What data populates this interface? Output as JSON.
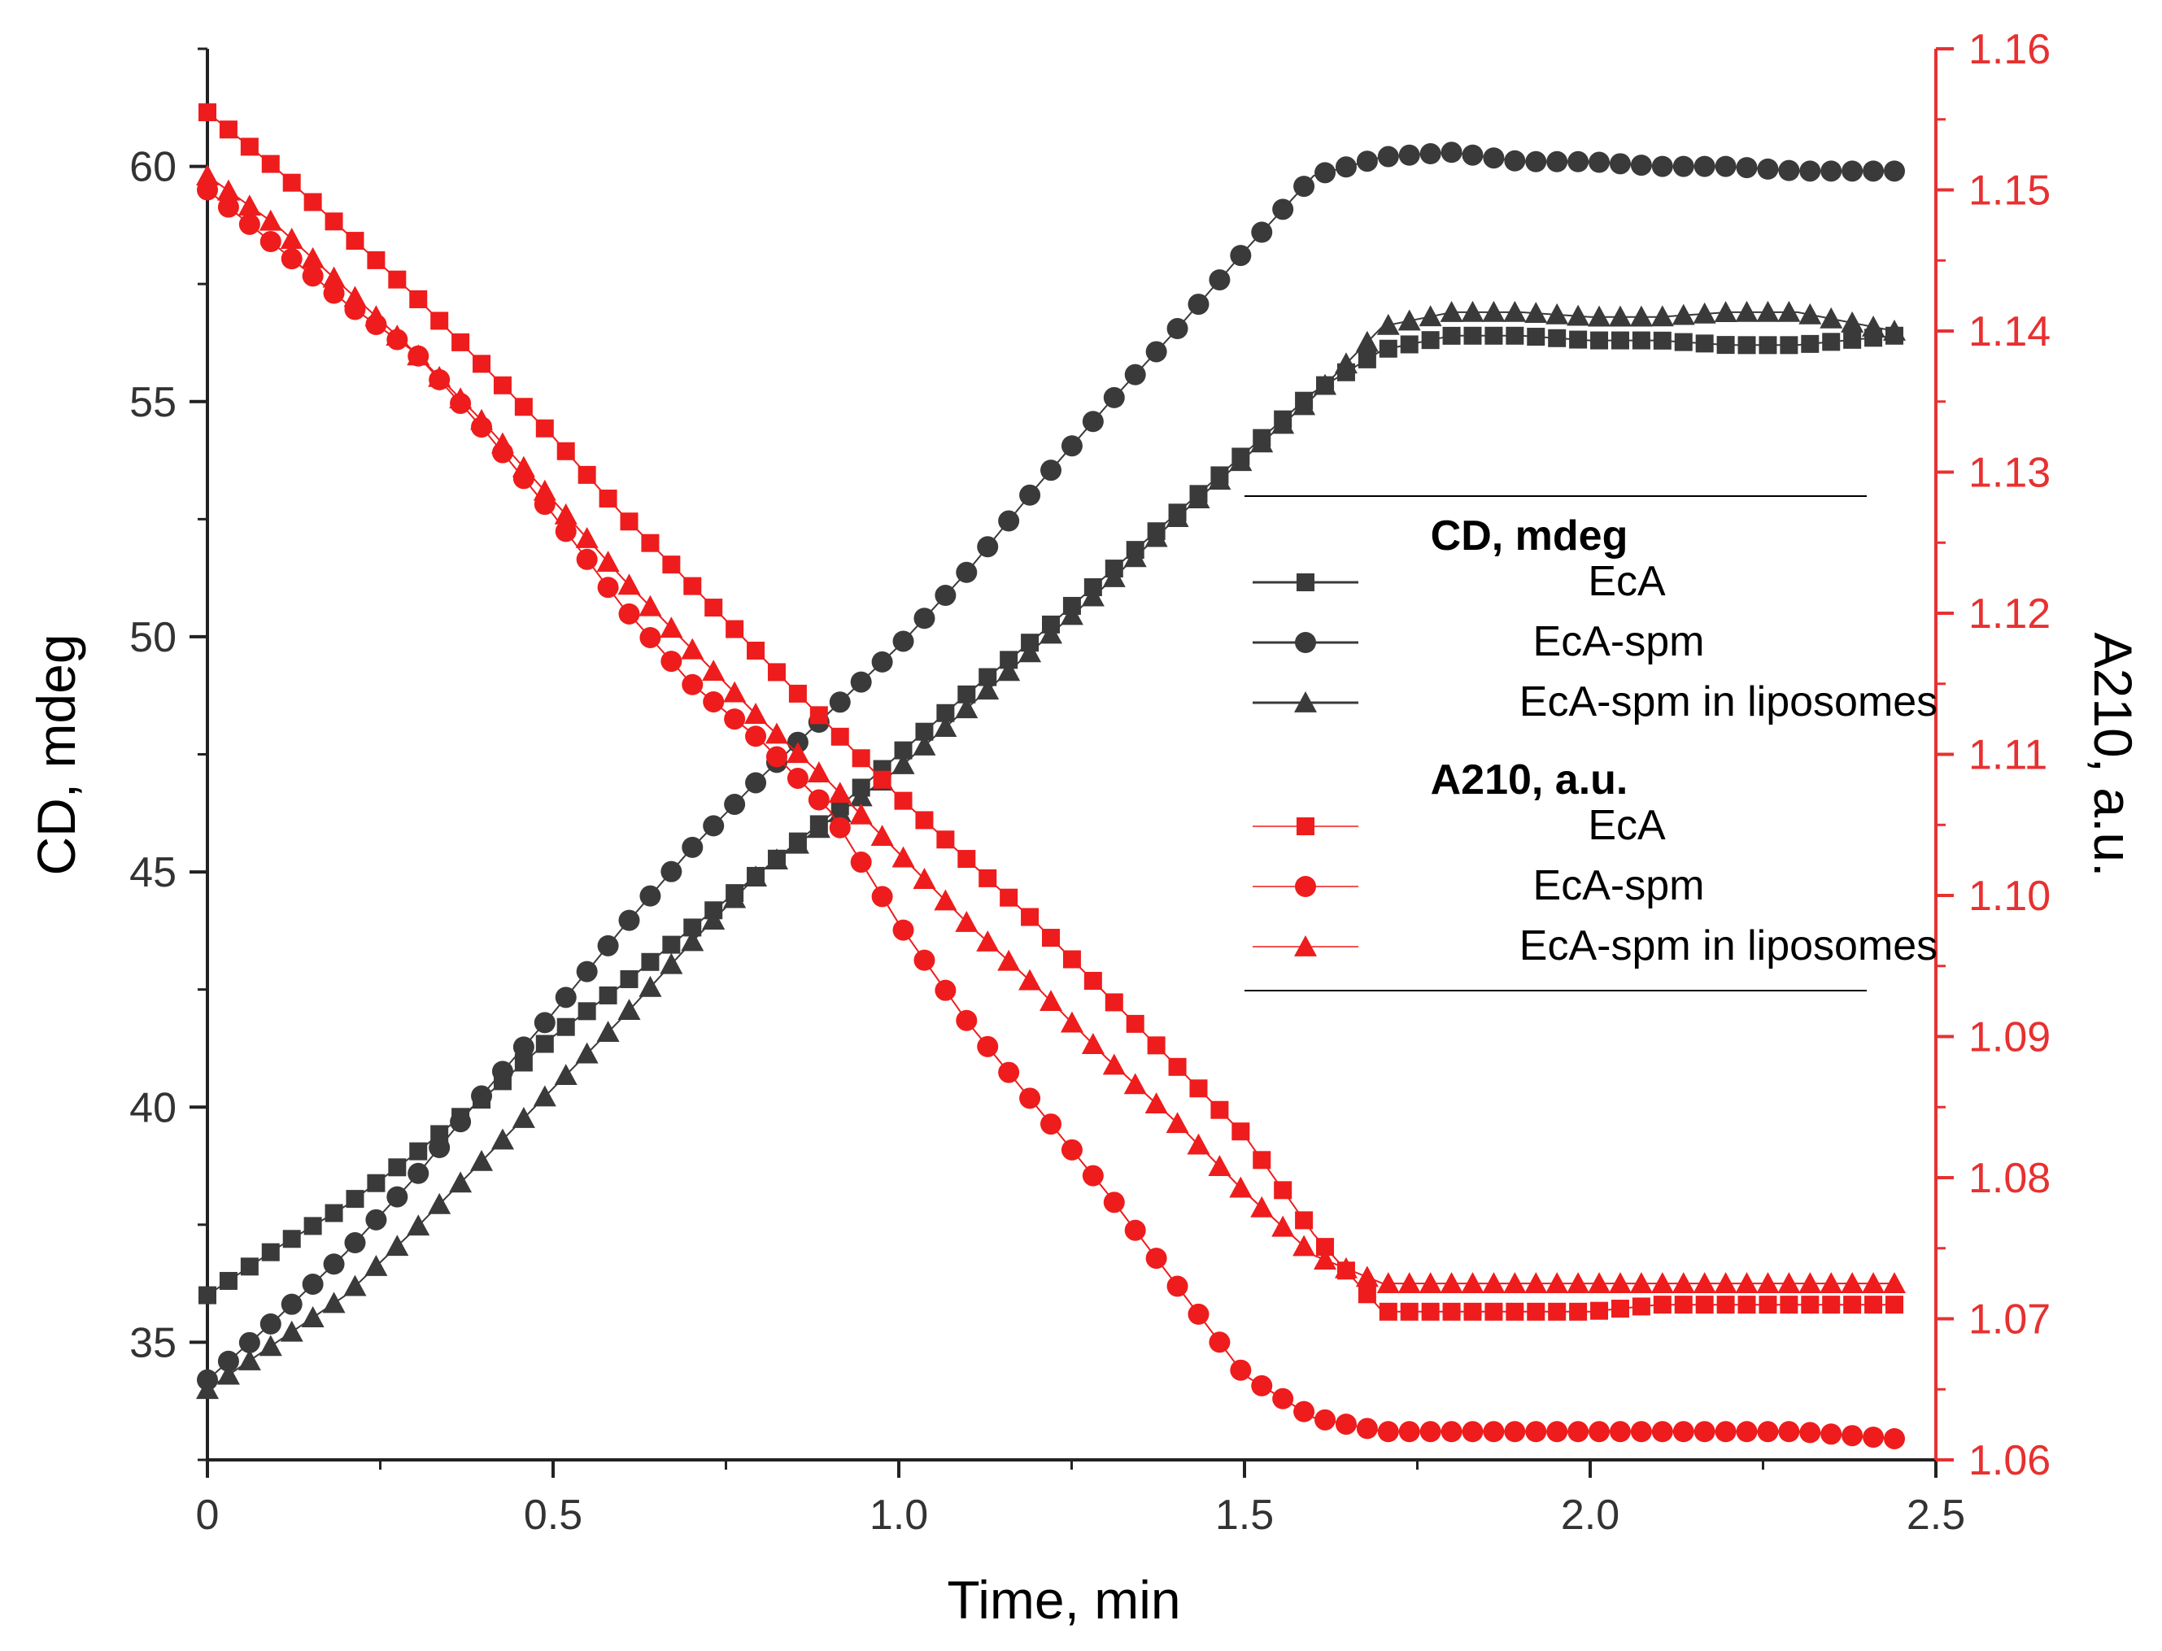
{
  "colors": {
    "cd_series": "#3a3a3a",
    "a210_series": "#ee1c1c",
    "right_axis": "#e83030",
    "axis": "#222222"
  },
  "chart_data": {
    "type": "scatter",
    "title": "",
    "xlabel": "Time, min",
    "ylabel_left": "CD, mdeg",
    "ylabel_right": "A210, a.u.",
    "xlim": [
      0,
      2.5
    ],
    "ylim_left": [
      32.5,
      62.5
    ],
    "ylim_right": [
      1.06,
      1.16
    ],
    "x_ticks": [
      "0",
      "0.5",
      "1.0",
      "1.5",
      "2.0",
      "2.5"
    ],
    "y_left_ticks": [
      "35",
      "40",
      "45",
      "50",
      "55",
      "60"
    ],
    "y_right_ticks": [
      "1.06",
      "1.07",
      "1.08",
      "1.09",
      "1.10",
      "1.11",
      "1.12",
      "1.13",
      "1.14",
      "1.15",
      "1.16"
    ],
    "grid": false,
    "legend_position": "center-right",
    "legend": {
      "group_cd": "CD, mdeg",
      "group_a210": "A210, a.u.",
      "entries": [
        "EcA",
        "EcA-spm",
        "EcA-spm in liposomes"
      ]
    },
    "series": [
      {
        "name": "EcA",
        "group": "CD, mdeg",
        "axis": "left",
        "marker": "square",
        "points": [
          [
            0,
            36.0
          ],
          [
            0.1,
            37.0
          ],
          [
            0.2,
            37.9
          ],
          [
            0.3,
            39.0
          ],
          [
            0.4,
            40.2
          ],
          [
            0.5,
            41.5
          ],
          [
            0.6,
            42.6
          ],
          [
            0.7,
            43.8
          ],
          [
            0.8,
            45.0
          ],
          [
            0.9,
            46.2
          ],
          [
            1.0,
            47.5
          ],
          [
            1.1,
            48.8
          ],
          [
            1.2,
            50.0
          ],
          [
            1.3,
            51.3
          ],
          [
            1.4,
            52.6
          ],
          [
            1.5,
            53.9
          ],
          [
            1.6,
            55.2
          ],
          [
            1.7,
            56.1
          ],
          [
            1.8,
            56.4
          ],
          [
            1.9,
            56.4
          ],
          [
            2.0,
            56.3
          ],
          [
            2.1,
            56.3
          ],
          [
            2.2,
            56.2
          ],
          [
            2.3,
            56.2
          ],
          [
            2.44,
            56.4
          ]
        ]
      },
      {
        "name": "EcA-spm",
        "group": "CD, mdeg",
        "axis": "left",
        "marker": "circle",
        "points": [
          [
            0,
            34.2
          ],
          [
            0.1,
            35.5
          ],
          [
            0.2,
            36.9
          ],
          [
            0.3,
            38.5
          ],
          [
            0.4,
            40.3
          ],
          [
            0.5,
            42.0
          ],
          [
            0.6,
            43.8
          ],
          [
            0.7,
            45.5
          ],
          [
            0.8,
            47.0
          ],
          [
            0.9,
            48.4
          ],
          [
            1.0,
            49.8
          ],
          [
            1.1,
            51.4
          ],
          [
            1.2,
            53.2
          ],
          [
            1.3,
            54.9
          ],
          [
            1.4,
            56.5
          ],
          [
            1.5,
            58.2
          ],
          [
            1.6,
            59.8
          ],
          [
            1.7,
            60.2
          ],
          [
            1.8,
            60.3
          ],
          [
            1.9,
            60.1
          ],
          [
            2.0,
            60.1
          ],
          [
            2.1,
            60.0
          ],
          [
            2.2,
            60.0
          ],
          [
            2.3,
            59.9
          ],
          [
            2.44,
            59.9
          ]
        ]
      },
      {
        "name": "EcA-spm in liposomes",
        "group": "CD, mdeg",
        "axis": "left",
        "marker": "triangle",
        "points": [
          [
            0,
            34.0
          ],
          [
            0.1,
            35.0
          ],
          [
            0.2,
            36.0
          ],
          [
            0.3,
            37.4
          ],
          [
            0.4,
            38.9
          ],
          [
            0.5,
            40.4
          ],
          [
            0.6,
            41.9
          ],
          [
            0.7,
            43.5
          ],
          [
            0.8,
            45.0
          ],
          [
            0.9,
            46.1
          ],
          [
            1.0,
            47.2
          ],
          [
            1.1,
            48.5
          ],
          [
            1.2,
            49.8
          ],
          [
            1.3,
            51.1
          ],
          [
            1.4,
            52.5
          ],
          [
            1.5,
            53.8
          ],
          [
            1.6,
            55.1
          ],
          [
            1.7,
            56.6
          ],
          [
            1.8,
            56.9
          ],
          [
            1.9,
            56.9
          ],
          [
            2.0,
            56.8
          ],
          [
            2.1,
            56.8
          ],
          [
            2.2,
            56.9
          ],
          [
            2.3,
            56.9
          ],
          [
            2.44,
            56.5
          ]
        ]
      },
      {
        "name": "EcA",
        "group": "A210, a.u.",
        "axis": "right",
        "marker": "square",
        "points": [
          [
            0,
            1.1555
          ],
          [
            0.1,
            1.1515
          ],
          [
            0.2,
            1.147
          ],
          [
            0.3,
            1.1425
          ],
          [
            0.4,
            1.1375
          ],
          [
            0.5,
            1.1325
          ],
          [
            0.6,
            1.127
          ],
          [
            0.7,
            1.122
          ],
          [
            0.8,
            1.117
          ],
          [
            0.9,
            1.112
          ],
          [
            1.0,
            1.107
          ],
          [
            1.1,
            1.1025
          ],
          [
            1.2,
            1.098
          ],
          [
            1.3,
            1.093
          ],
          [
            1.4,
            1.088
          ],
          [
            1.5,
            1.083
          ],
          [
            1.6,
            1.076
          ],
          [
            1.7,
            1.0705
          ],
          [
            1.8,
            1.0705
          ],
          [
            1.9,
            1.0705
          ],
          [
            2.0,
            1.0705
          ],
          [
            2.1,
            1.071
          ],
          [
            2.2,
            1.071
          ],
          [
            2.3,
            1.071
          ],
          [
            2.44,
            1.071
          ]
        ]
      },
      {
        "name": "EcA-spm",
        "group": "A210, a.u.",
        "axis": "right",
        "marker": "circle",
        "points": [
          [
            0,
            1.15
          ],
          [
            0.1,
            1.146
          ],
          [
            0.2,
            1.142
          ],
          [
            0.3,
            1.1385
          ],
          [
            0.4,
            1.133
          ],
          [
            0.5,
            1.127
          ],
          [
            0.6,
            1.1205
          ],
          [
            0.7,
            1.115
          ],
          [
            0.8,
            1.111
          ],
          [
            0.9,
            1.106
          ],
          [
            1.0,
            1.098
          ],
          [
            1.1,
            1.091
          ],
          [
            1.2,
            1.085
          ],
          [
            1.3,
            1.079
          ],
          [
            1.4,
            1.0725
          ],
          [
            1.5,
            1.066
          ],
          [
            1.6,
            1.063
          ],
          [
            1.7,
            1.062
          ],
          [
            1.8,
            1.062
          ],
          [
            1.9,
            1.062
          ],
          [
            2.0,
            1.062
          ],
          [
            2.1,
            1.062
          ],
          [
            2.2,
            1.062
          ],
          [
            2.3,
            1.062
          ],
          [
            2.44,
            1.0615
          ]
        ]
      },
      {
        "name": "EcA-spm in liposomes",
        "group": "A210, a.u.",
        "axis": "right",
        "marker": "triangle",
        "points": [
          [
            0,
            1.151
          ],
          [
            0.1,
            1.1475
          ],
          [
            0.2,
            1.143
          ],
          [
            0.3,
            1.1385
          ],
          [
            0.4,
            1.1335
          ],
          [
            0.5,
            1.128
          ],
          [
            0.6,
            1.1225
          ],
          [
            0.7,
            1.1175
          ],
          [
            0.8,
            1.1125
          ],
          [
            0.9,
            1.108
          ],
          [
            1.0,
            1.103
          ],
          [
            1.1,
            1.098
          ],
          [
            1.2,
            1.0935
          ],
          [
            1.3,
            1.0885
          ],
          [
            1.4,
            1.084
          ],
          [
            1.5,
            1.079
          ],
          [
            1.6,
            1.0745
          ],
          [
            1.7,
            1.0725
          ],
          [
            1.8,
            1.0725
          ],
          [
            1.9,
            1.0725
          ],
          [
            2.0,
            1.0725
          ],
          [
            2.1,
            1.0725
          ],
          [
            2.2,
            1.0725
          ],
          [
            2.3,
            1.0725
          ],
          [
            2.44,
            1.0725
          ]
        ]
      }
    ]
  }
}
